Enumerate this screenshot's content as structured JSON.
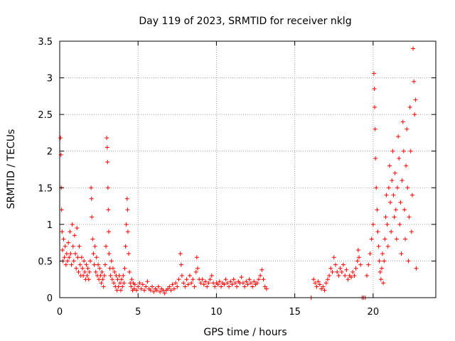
{
  "chart_data": {
    "type": "scatter",
    "title": "Day 119 of 2023, SRMTID for receiver nklg",
    "xlabel": "GPS time / hours",
    "ylabel": "SRMTID / TECUs",
    "xlim": [
      0,
      24
    ],
    "ylim": [
      0,
      3.5
    ],
    "xticks": [
      0,
      5,
      10,
      15,
      20
    ],
    "xtick_labels": [
      "0",
      "5",
      "10",
      "15",
      "20"
    ],
    "yticks": [
      0,
      0.5,
      1,
      1.5,
      2,
      2.5,
      3,
      3.5
    ],
    "ytick_labels": [
      "0",
      "0.5",
      "1",
      "1.5",
      "2",
      "2.5",
      "3",
      "3.5"
    ],
    "grid": true,
    "marker": "+",
    "color": "#ff0000",
    "series": [
      {
        "name": "SRMTID",
        "points": [
          [
            0.05,
            2.18
          ],
          [
            0.08,
            1.95
          ],
          [
            0.1,
            1.5
          ],
          [
            0.12,
            1.2
          ],
          [
            0.15,
            0.9
          ],
          [
            0.18,
            0.65
          ],
          [
            0.2,
            0.5
          ],
          [
            0.25,
            0.8
          ],
          [
            0.3,
            0.55
          ],
          [
            0.35,
            0.7
          ],
          [
            0.4,
            0.45
          ],
          [
            0.45,
            0.6
          ],
          [
            0.5,
            0.5
          ],
          [
            0.55,
            0.75
          ],
          [
            0.6,
            0.55
          ],
          [
            0.65,
            0.9
          ],
          [
            0.7,
            0.6
          ],
          [
            0.75,
            0.45
          ],
          [
            0.8,
            1.0
          ],
          [
            0.85,
            0.7
          ],
          [
            0.9,
            0.5
          ],
          [
            0.95,
            0.85
          ],
          [
            1.0,
            0.6
          ],
          [
            1.05,
            0.4
          ],
          [
            1.1,
            0.95
          ],
          [
            1.15,
            0.55
          ],
          [
            1.2,
            0.35
          ],
          [
            1.25,
            0.7
          ],
          [
            1.3,
            0.45
          ],
          [
            1.35,
            0.3
          ],
          [
            1.4,
            0.55
          ],
          [
            1.45,
            0.4
          ],
          [
            1.5,
            0.3
          ],
          [
            1.55,
            0.5
          ],
          [
            1.6,
            0.35
          ],
          [
            1.65,
            0.25
          ],
          [
            1.7,
            0.45
          ],
          [
            1.75,
            0.3
          ],
          [
            1.8,
            0.4
          ],
          [
            1.85,
            0.25
          ],
          [
            1.9,
            0.35
          ],
          [
            1.95,
            0.5
          ],
          [
            2.0,
            1.5
          ],
          [
            2.03,
            1.35
          ],
          [
            2.05,
            1.1
          ],
          [
            2.1,
            0.8
          ],
          [
            2.15,
            0.6
          ],
          [
            2.2,
            0.45
          ],
          [
            2.25,
            0.7
          ],
          [
            2.3,
            0.35
          ],
          [
            2.35,
            0.55
          ],
          [
            2.4,
            0.3
          ],
          [
            2.45,
            0.45
          ],
          [
            2.5,
            0.25
          ],
          [
            2.55,
            0.4
          ],
          [
            2.6,
            0.3
          ],
          [
            2.65,
            0.2
          ],
          [
            2.7,
            0.35
          ],
          [
            2.75,
            0.25
          ],
          [
            2.8,
            0.15
          ],
          [
            2.85,
            0.3
          ],
          [
            2.9,
            0.45
          ],
          [
            2.95,
            0.7
          ],
          [
            3.0,
            2.18
          ],
          [
            3.03,
            2.05
          ],
          [
            3.05,
            1.85
          ],
          [
            3.08,
            1.5
          ],
          [
            3.1,
            1.2
          ],
          [
            3.13,
            0.9
          ],
          [
            3.15,
            0.6
          ],
          [
            3.2,
            0.4
          ],
          [
            3.25,
            0.3
          ],
          [
            3.3,
            0.5
          ],
          [
            3.35,
            0.25
          ],
          [
            3.4,
            0.4
          ],
          [
            3.45,
            0.2
          ],
          [
            3.5,
            0.35
          ],
          [
            3.55,
            0.15
          ],
          [
            3.6,
            0.3
          ],
          [
            3.65,
            0.1
          ],
          [
            3.7,
            0.25
          ],
          [
            3.75,
            0.15
          ],
          [
            3.8,
            0.3
          ],
          [
            3.85,
            0.2
          ],
          [
            3.9,
            0.1
          ],
          [
            3.95,
            0.25
          ],
          [
            4.0,
            0.15
          ],
          [
            4.05,
            0.3
          ],
          [
            4.1,
            0.2
          ],
          [
            4.15,
            0.4
          ],
          [
            4.2,
            0.7
          ],
          [
            4.25,
            1.0
          ],
          [
            4.3,
            1.35
          ],
          [
            4.33,
            1.2
          ],
          [
            4.35,
            0.9
          ],
          [
            4.4,
            0.6
          ],
          [
            4.45,
            0.35
          ],
          [
            4.5,
            0.2
          ],
          [
            4.55,
            0.15
          ],
          [
            4.6,
            0.25
          ],
          [
            4.65,
            0.1
          ],
          [
            4.7,
            0.2
          ],
          [
            4.75,
            0.12
          ],
          [
            4.8,
            0.18
          ],
          [
            4.9,
            0.1
          ],
          [
            5.0,
            0.15
          ],
          [
            5.1,
            0.2
          ],
          [
            5.2,
            0.12
          ],
          [
            5.3,
            0.18
          ],
          [
            5.4,
            0.1
          ],
          [
            5.5,
            0.15
          ],
          [
            5.6,
            0.22
          ],
          [
            5.7,
            0.12
          ],
          [
            5.8,
            0.1
          ],
          [
            5.9,
            0.15
          ],
          [
            6.0,
            0.08
          ],
          [
            6.1,
            0.12
          ],
          [
            6.2,
            0.1
          ],
          [
            6.3,
            0.15
          ],
          [
            6.4,
            0.08
          ],
          [
            6.5,
            0.12
          ],
          [
            6.6,
            0.1
          ],
          [
            6.7,
            0.06
          ],
          [
            6.8,
            0.1
          ],
          [
            6.9,
            0.12
          ],
          [
            7.0,
            0.15
          ],
          [
            7.1,
            0.1
          ],
          [
            7.2,
            0.18
          ],
          [
            7.3,
            0.12
          ],
          [
            7.4,
            0.2
          ],
          [
            7.5,
            0.15
          ],
          [
            7.6,
            0.25
          ],
          [
            7.7,
            0.6
          ],
          [
            7.75,
            0.45
          ],
          [
            7.8,
            0.3
          ],
          [
            7.9,
            0.2
          ],
          [
            8.0,
            0.15
          ],
          [
            8.1,
            0.25
          ],
          [
            8.2,
            0.18
          ],
          [
            8.3,
            0.3
          ],
          [
            8.4,
            0.2
          ],
          [
            8.5,
            0.25
          ],
          [
            8.6,
            0.15
          ],
          [
            8.7,
            0.35
          ],
          [
            8.75,
            0.55
          ],
          [
            8.8,
            0.4
          ],
          [
            8.9,
            0.25
          ],
          [
            9.0,
            0.2
          ],
          [
            9.1,
            0.25
          ],
          [
            9.2,
            0.18
          ],
          [
            9.3,
            0.22
          ],
          [
            9.4,
            0.15
          ],
          [
            9.5,
            0.2
          ],
          [
            9.6,
            0.25
          ],
          [
            9.7,
            0.3
          ],
          [
            9.8,
            0.2
          ],
          [
            9.9,
            0.15
          ],
          [
            10.0,
            0.2
          ],
          [
            10.1,
            0.18
          ],
          [
            10.2,
            0.22
          ],
          [
            10.3,
            0.15
          ],
          [
            10.4,
            0.2
          ],
          [
            10.5,
            0.18
          ],
          [
            10.6,
            0.25
          ],
          [
            10.7,
            0.2
          ],
          [
            10.8,
            0.15
          ],
          [
            10.9,
            0.22
          ],
          [
            11.0,
            0.18
          ],
          [
            11.1,
            0.25
          ],
          [
            11.2,
            0.2
          ],
          [
            11.3,
            0.15
          ],
          [
            11.4,
            0.22
          ],
          [
            11.5,
            0.2
          ],
          [
            11.6,
            0.28
          ],
          [
            11.7,
            0.2
          ],
          [
            11.8,
            0.15
          ],
          [
            11.9,
            0.22
          ],
          [
            12.0,
            0.18
          ],
          [
            12.1,
            0.25
          ],
          [
            12.2,
            0.2
          ],
          [
            12.3,
            0.15
          ],
          [
            12.4,
            0.22
          ],
          [
            12.5,
            0.18
          ],
          [
            12.6,
            0.2
          ],
          [
            12.7,
            0.25
          ],
          [
            12.8,
            0.3
          ],
          [
            12.9,
            0.38
          ],
          [
            13.0,
            0.25
          ],
          [
            13.1,
            0.15
          ],
          [
            13.2,
            0.12
          ],
          [
            16.05,
            0.0
          ],
          [
            16.2,
            0.25
          ],
          [
            16.3,
            0.2
          ],
          [
            16.4,
            0.15
          ],
          [
            16.5,
            0.22
          ],
          [
            16.6,
            0.18
          ],
          [
            16.7,
            0.12
          ],
          [
            16.8,
            0.15
          ],
          [
            16.9,
            0.1
          ],
          [
            17.0,
            0.2
          ],
          [
            17.1,
            0.25
          ],
          [
            17.2,
            0.3
          ],
          [
            17.3,
            0.4
          ],
          [
            17.4,
            0.35
          ],
          [
            17.5,
            0.55
          ],
          [
            17.6,
            0.45
          ],
          [
            17.7,
            0.35
          ],
          [
            17.8,
            0.3
          ],
          [
            17.9,
            0.4
          ],
          [
            18.0,
            0.35
          ],
          [
            18.1,
            0.45
          ],
          [
            18.2,
            0.3
          ],
          [
            18.3,
            0.38
          ],
          [
            18.4,
            0.25
          ],
          [
            18.5,
            0.3
          ],
          [
            18.6,
            0.28
          ],
          [
            18.7,
            0.35
          ],
          [
            18.8,
            0.3
          ],
          [
            18.9,
            0.4
          ],
          [
            19.0,
            0.5
          ],
          [
            19.05,
            0.65
          ],
          [
            19.1,
            0.55
          ],
          [
            19.2,
            0.45
          ],
          [
            19.3,
            0.0
          ],
          [
            19.4,
            0.0
          ],
          [
            19.5,
            0.0
          ],
          [
            19.6,
            0.3
          ],
          [
            19.7,
            0.45
          ],
          [
            19.8,
            0.6
          ],
          [
            19.9,
            0.8
          ],
          [
            20.0,
            1.0
          ],
          [
            20.05,
            3.06
          ],
          [
            20.08,
            2.85
          ],
          [
            20.1,
            2.6
          ],
          [
            20.13,
            2.3
          ],
          [
            20.15,
            1.9
          ],
          [
            20.2,
            1.5
          ],
          [
            20.25,
            1.2
          ],
          [
            20.3,
            0.9
          ],
          [
            20.35,
            0.7
          ],
          [
            20.4,
            0.5
          ],
          [
            20.45,
            0.35
          ],
          [
            20.5,
            0.25
          ],
          [
            20.55,
            0.4
          ],
          [
            20.6,
            0.6
          ],
          [
            20.65,
            0.2
          ],
          [
            20.7,
            0.5
          ],
          [
            20.75,
            0.8
          ],
          [
            20.8,
            1.1
          ],
          [
            20.85,
            1.4
          ],
          [
            20.9,
            1.0
          ],
          [
            20.95,
            0.7
          ],
          [
            21.0,
            1.5
          ],
          [
            21.05,
            1.8
          ],
          [
            21.1,
            1.3
          ],
          [
            21.15,
            0.9
          ],
          [
            21.2,
            1.6
          ],
          [
            21.25,
            2.0
          ],
          [
            21.3,
            1.4
          ],
          [
            21.35,
            1.1
          ],
          [
            21.4,
            1.7
          ],
          [
            21.45,
            1.2
          ],
          [
            21.5,
            0.8
          ],
          [
            21.55,
            1.5
          ],
          [
            21.6,
            2.2
          ],
          [
            21.65,
            1.9
          ],
          [
            21.7,
            1.0
          ],
          [
            21.75,
            1.3
          ],
          [
            21.8,
            0.6
          ],
          [
            21.85,
            1.6
          ],
          [
            21.9,
            2.4
          ],
          [
            21.95,
            2.0
          ],
          [
            22.0,
            1.2
          ],
          [
            22.05,
            0.8
          ],
          [
            22.1,
            1.8
          ],
          [
            22.15,
            2.3
          ],
          [
            22.2,
            1.5
          ],
          [
            22.25,
            0.5
          ],
          [
            22.3,
            1.1
          ],
          [
            22.35,
            2.6
          ],
          [
            22.4,
            2.0
          ],
          [
            22.45,
            0.9
          ],
          [
            22.5,
            1.4
          ],
          [
            22.55,
            3.4
          ],
          [
            22.6,
            2.95
          ],
          [
            22.65,
            2.5
          ],
          [
            22.7,
            2.7
          ],
          [
            22.75,
            0.4
          ]
        ]
      }
    ]
  }
}
